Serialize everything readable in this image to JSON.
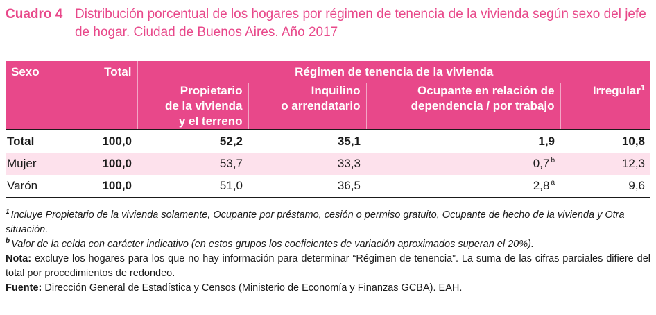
{
  "title": {
    "label": "Cuadro 4",
    "text": "Distribución porcentual de los hogares por régimen de tenencia de la vivienda según sexo del jefe de hogar. Ciudad de Buenos Aires. Año 2017"
  },
  "table": {
    "headers": {
      "sexo": "Sexo",
      "total": "Total",
      "regimen": "Régimen de tenencia de la vivienda",
      "propietario": [
        "Propietario",
        "de la vivienda",
        "y el terreno"
      ],
      "inquilino": [
        "Inquilino",
        "o arrendatario"
      ],
      "ocupante": [
        "Ocupante en relación de",
        "dependencia / por trabajo"
      ],
      "irregular": "Irregular",
      "irregular_mark": "1"
    },
    "rows": [
      {
        "sexo": "Total",
        "total": "100,0",
        "propietario": "52,2",
        "inquilino": "35,1",
        "ocupante": "1,9",
        "ocupante_note": "",
        "irregular": "10,8"
      },
      {
        "sexo": "Mujer",
        "total": "100,0",
        "propietario": "53,7",
        "inquilino": "33,3",
        "ocupante": "0,7",
        "ocupante_note": "b",
        "irregular": "12,3"
      },
      {
        "sexo": "Varón",
        "total": "100,0",
        "propietario": "51,0",
        "inquilino": "36,5",
        "ocupante": "2,8",
        "ocupante_note": "a",
        "irregular": "9,6"
      }
    ]
  },
  "notes": {
    "fn1_mark": "1",
    "fn1": "Incluye Propietario de la vivienda solamente, Ocupante por préstamo, cesión o permiso gratuito, Ocupante de hecho de la vivienda y Otra situación.",
    "fnb_mark": "b",
    "fnb": "Valor de la celda con carácter indicativo (en estos grupos los coeficientes de variación aproximados superan el 20%).",
    "nota_label": "Nota:",
    "nota_text": "excluye los hogares para los que no hay información para determinar “Régimen de tenencia”. La suma de las cifras parciales difiere del total por procedimientos de redondeo.",
    "fuente_label": "Fuente:",
    "fuente_text": "Dirección General de Estadística y Censos (Ministerio de Economía y Finanzas GCBA). EAH."
  },
  "colors": {
    "accent": "#e8488a",
    "subheader": "#ef74a8",
    "row_highlight": "#fde1ec"
  }
}
